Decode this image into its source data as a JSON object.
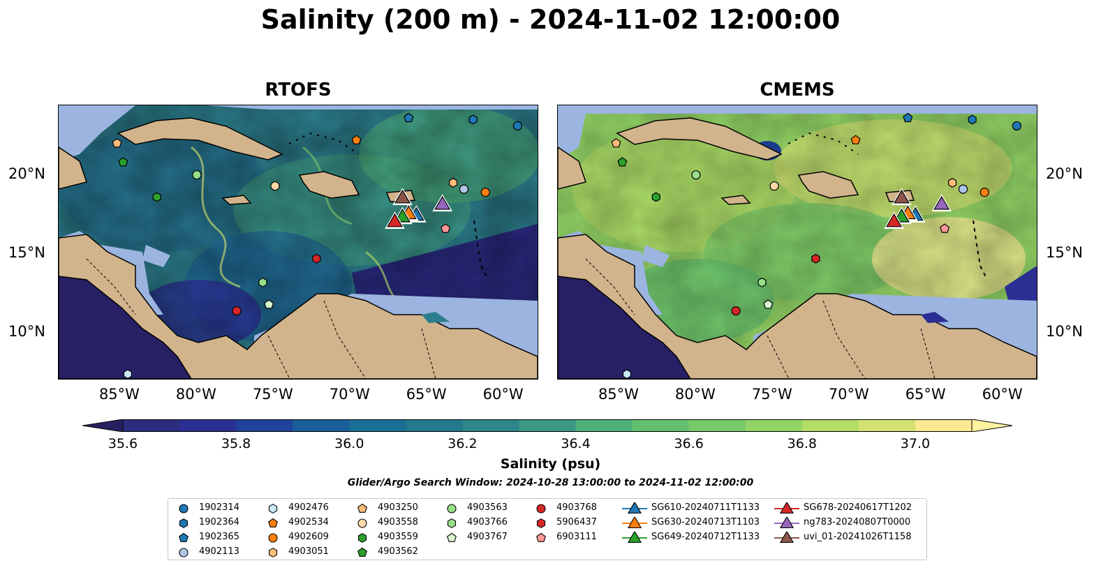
{
  "title": "Salinity (200 m) - 2024-11-02 12:00:00",
  "panels": [
    {
      "title": "RTOFS"
    },
    {
      "title": "CMEMS"
    }
  ],
  "lat_labels": [
    "20°N",
    "15°N",
    "10°N"
  ],
  "lon_labels": [
    "85°W",
    "80°W",
    "75°W",
    "70°W",
    "65°W",
    "60°W"
  ],
  "colorbar": {
    "label": "Salinity (psu)",
    "ticks": [
      "35.6",
      "35.8",
      "36.0",
      "36.2",
      "36.4",
      "36.6",
      "36.8",
      "37.0"
    ],
    "min": 35.6,
    "max": 37.0,
    "colors": [
      "#2c2d7e",
      "#2b2f94",
      "#1f449b",
      "#19609a",
      "#1a6f94",
      "#23798d",
      "#2c868a",
      "#3a9884",
      "#4fb078",
      "#62c06f",
      "#77c96a",
      "#92d365",
      "#b2dd66",
      "#d4e272",
      "#fbe994"
    ],
    "under_color": "#26205f",
    "over_color": "#fff2a0"
  },
  "search_window": "Glider/Argo Search Window: 2024-10-28 13:00:00 to 2024-11-02 12:00:00",
  "legend": [
    {
      "label": "1902314",
      "color": "#1f77b4",
      "marker": "circle"
    },
    {
      "label": "1902364",
      "color": "#1f77b4",
      "marker": "hexagon"
    },
    {
      "label": "1902365",
      "color": "#1f77b4",
      "marker": "pentagon"
    },
    {
      "label": "4902113",
      "color": "#aec7e8",
      "marker": "circle"
    },
    {
      "label": "4902476",
      "color": "#c8e8f8",
      "marker": "hexagon"
    },
    {
      "label": "4902534",
      "color": "#ff7f0e",
      "marker": "pentagon"
    },
    {
      "label": "4902609",
      "color": "#ff7f0e",
      "marker": "circle"
    },
    {
      "label": "4903051",
      "color": "#ffbb78",
      "marker": "hexagon"
    },
    {
      "label": "4903250",
      "color": "#ffbb78",
      "marker": "pentagon"
    },
    {
      "label": "4903558",
      "color": "#ffd8a8",
      "marker": "circle"
    },
    {
      "label": "4903559",
      "color": "#2ca02c",
      "marker": "hexagon"
    },
    {
      "label": "4903562",
      "color": "#2ca02c",
      "marker": "pentagon"
    },
    {
      "label": "4903563",
      "color": "#98df8a",
      "marker": "circle"
    },
    {
      "label": "4903766",
      "color": "#98df8a",
      "marker": "hexagon"
    },
    {
      "label": "4903767",
      "color": "#d8f5d0",
      "marker": "pentagon"
    },
    {
      "label": "4903768",
      "color": "#d62728",
      "marker": "circle"
    },
    {
      "label": "5906437",
      "color": "#d62728",
      "marker": "hexagon"
    },
    {
      "label": "6903111",
      "color": "#ff9896",
      "marker": "pentagon"
    },
    {
      "label": "SG610-20240711T1133",
      "color": "#1f77b4",
      "marker": "triangle"
    },
    {
      "label": "SG630-20240713T1103",
      "color": "#ff7f0e",
      "marker": "triangle"
    },
    {
      "label": "SG649-20240712T1133",
      "color": "#2ca02c",
      "marker": "triangle"
    },
    {
      "label": "SG678-20240617T1202",
      "color": "#d62728",
      "marker": "triangle"
    },
    {
      "label": "ng783-20240807T0000",
      "color": "#9467bd",
      "marker": "triangle"
    },
    {
      "label": "uvi_01-20241026T1158",
      "color": "#8c564b",
      "marker": "triangle"
    }
  ],
  "observations": [
    {
      "id": "1902314",
      "lon": -59.1,
      "lat": 23.1
    },
    {
      "id": "1902364",
      "lon": -62.0,
      "lat": 23.5
    },
    {
      "id": "1902365",
      "lon": -66.2,
      "lat": 23.6
    },
    {
      "id": "4902113",
      "lon": -62.6,
      "lat": 19.1
    },
    {
      "id": "4902476",
      "lon": -84.5,
      "lat": 7.4
    },
    {
      "id": "4902534",
      "lon": -69.6,
      "lat": 22.2
    },
    {
      "id": "4902609",
      "lon": -61.2,
      "lat": 18.9
    },
    {
      "id": "4903051",
      "lon": -63.3,
      "lat": 19.5
    },
    {
      "id": "4903250",
      "lon": -85.2,
      "lat": 22.0
    },
    {
      "id": "4903558",
      "lon": -74.9,
      "lat": 19.3
    },
    {
      "id": "4903559",
      "lon": -82.6,
      "lat": 18.6
    },
    {
      "id": "4903562",
      "lon": -84.8,
      "lat": 20.8
    },
    {
      "id": "4903563",
      "lon": -80.0,
      "lat": 20.0
    },
    {
      "id": "4903766",
      "lon": -75.7,
      "lat": 13.2
    },
    {
      "id": "4903767",
      "lon": -75.3,
      "lat": 11.8
    },
    {
      "id": "4903768",
      "lon": -77.4,
      "lat": 11.4
    },
    {
      "id": "5906437",
      "lon": -72.2,
      "lat": 14.7
    },
    {
      "id": "6903111",
      "lon": -63.8,
      "lat": 16.6
    },
    {
      "id": "SG610-20240711T1133",
      "lon": -65.7,
      "lat": 17.5
    },
    {
      "id": "SG630-20240713T1103",
      "lon": -66.2,
      "lat": 17.6
    },
    {
      "id": "SG649-20240712T1133",
      "lon": -66.6,
      "lat": 17.4
    },
    {
      "id": "SG678-20240617T1202",
      "lon": -67.1,
      "lat": 17.1
    },
    {
      "id": "ng783-20240807T0000",
      "lon": -64.0,
      "lat": 18.2
    },
    {
      "id": "uvi_01-20241026T1158",
      "lon": -66.6,
      "lat": 18.6
    }
  ]
}
